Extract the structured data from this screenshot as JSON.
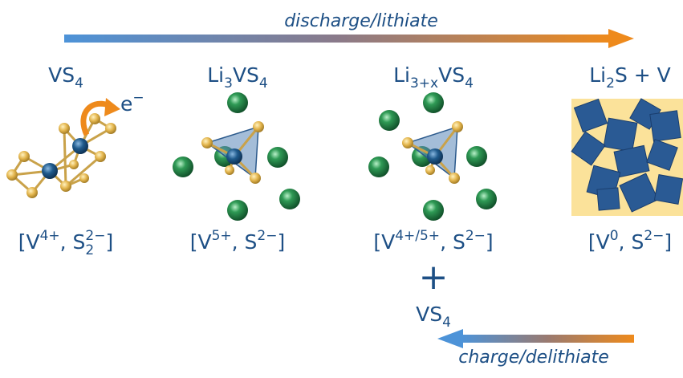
{
  "process": {
    "discharge": "discharge/lithiate",
    "charge": "charge/delithiate"
  },
  "states": [
    {
      "formula": [
        {
          "text": "VS"
        },
        {
          "sub": "4"
        }
      ],
      "oxidation": [
        {
          "text": "[V"
        },
        {
          "sup": "4+"
        },
        {
          "text": ",  S"
        },
        {
          "sub": "2",
          "sup": "2−"
        },
        {
          "text": "]"
        }
      ]
    },
    {
      "formula": [
        {
          "text": "Li"
        },
        {
          "sub": "3"
        },
        {
          "text": "VS"
        },
        {
          "sub": "4"
        }
      ],
      "oxidation": [
        {
          "text": "[V"
        },
        {
          "sup": "5+"
        },
        {
          "text": ",  S"
        },
        {
          "sup": "2−"
        },
        {
          "text": "]"
        }
      ]
    },
    {
      "formula": [
        {
          "text": "Li"
        },
        {
          "sub": "3+x"
        },
        {
          "text": "VS"
        },
        {
          "sub": "4"
        }
      ],
      "oxidation": [
        {
          "text": "[V"
        },
        {
          "sup": "4+/5+"
        },
        {
          "text": ",  S"
        },
        {
          "sup": "2−"
        },
        {
          "text": "]"
        }
      ]
    },
    {
      "formula": [
        {
          "text": "Li"
        },
        {
          "sub": "2"
        },
        {
          "text": "S + V"
        }
      ],
      "oxidation": [
        {
          "text": "[V"
        },
        {
          "sup": "0"
        },
        {
          "text": ",  S"
        },
        {
          "sup": "2−"
        },
        {
          "text": "]"
        }
      ]
    }
  ],
  "electron": [
    {
      "text": "e"
    },
    {
      "sup": "−"
    }
  ],
  "plus": "+",
  "product_formula": [
    {
      "text": "VS"
    },
    {
      "sub": "4"
    }
  ]
}
